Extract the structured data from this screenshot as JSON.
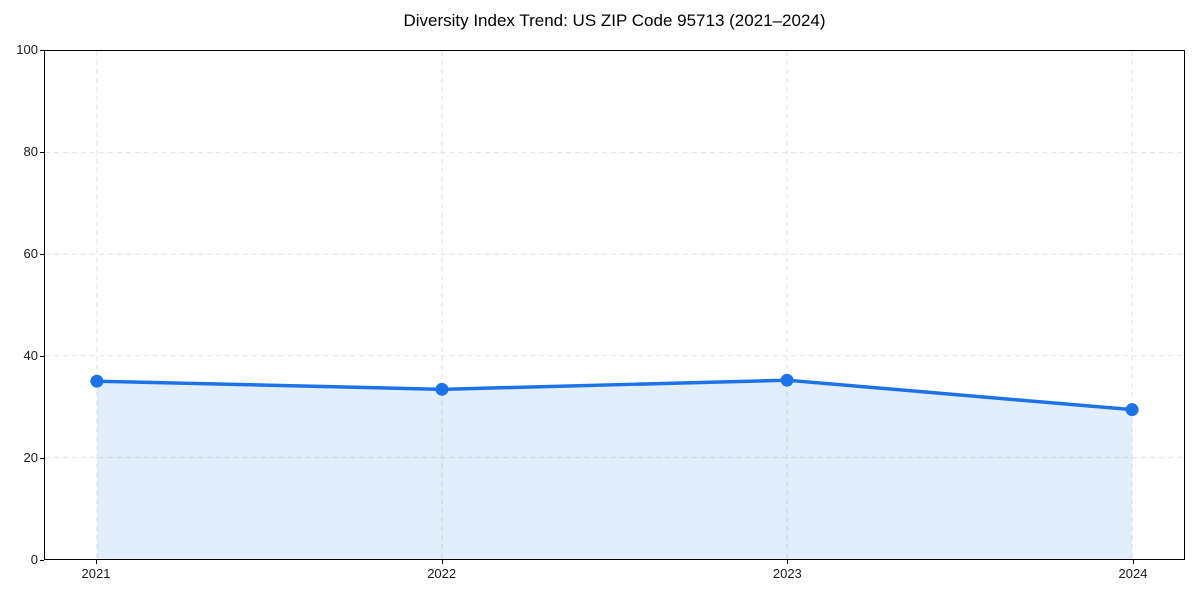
{
  "figure": {
    "background": "#ffffff"
  },
  "chart_data": {
    "type": "area",
    "title": "Diversity Index Trend: US ZIP Code 95713 (2021–2024)",
    "categories": [
      "2021",
      "2022",
      "2023",
      "2024"
    ],
    "values": [
      35.0,
      33.4,
      35.2,
      29.4
    ],
    "xlabel": "",
    "ylabel": "",
    "ylim": [
      0,
      100
    ],
    "yticks": [
      0,
      20,
      40,
      60,
      80,
      100
    ],
    "grid": "dashed both axes at tick positions",
    "legend": "none",
    "marker": "circle",
    "colors": {
      "line": "#1c73e8",
      "marker": "#1c73e8",
      "area_fill": "rgba(28, 115, 232, 0.12)",
      "gridline": "#e2e2e2",
      "spine": "#000000",
      "tick_label": "#1a1a1a",
      "title": "#000000"
    }
  }
}
